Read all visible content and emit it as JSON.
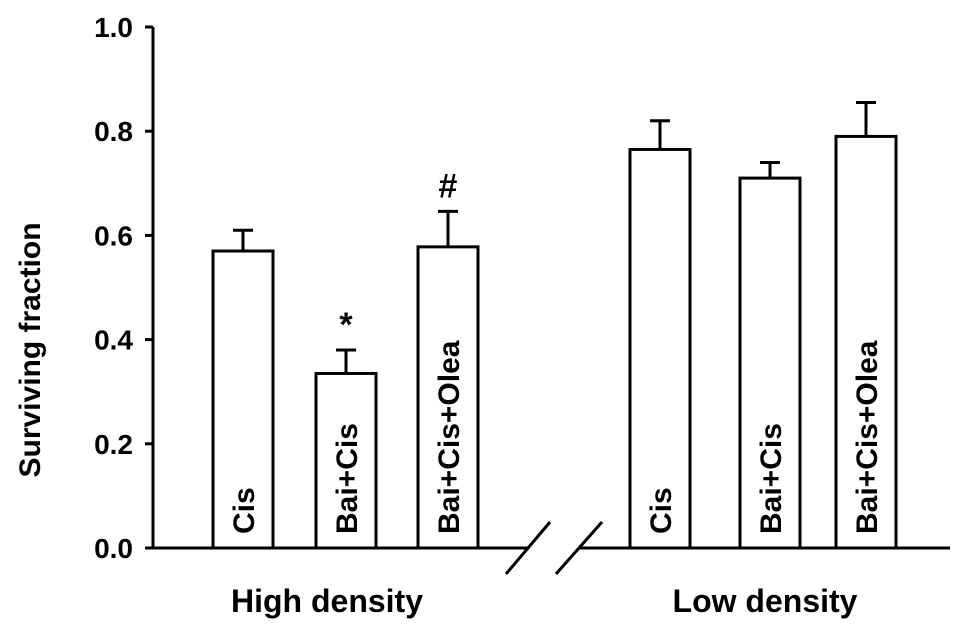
{
  "chart_data": {
    "type": "bar",
    "title": "",
    "ylabel": "Surviving fraction",
    "ylim": [
      0,
      1.0
    ],
    "yticks": [
      "0.0",
      "0.2",
      "0.4",
      "0.6",
      "0.8",
      "1.0"
    ],
    "grid": false,
    "axis_break": true,
    "groups": [
      {
        "name": "High density",
        "bars": [
          {
            "label": "Cis",
            "value": 0.57,
            "error": 0.04,
            "annotation": ""
          },
          {
            "label": "Bai+Cis",
            "value": 0.335,
            "error": 0.045,
            "annotation": "*"
          },
          {
            "label": "Bai+Cis+Olea",
            "value": 0.578,
            "error": 0.068,
            "annotation": "#"
          }
        ]
      },
      {
        "name": "Low density",
        "bars": [
          {
            "label": "Cis",
            "value": 0.765,
            "error": 0.055,
            "annotation": ""
          },
          {
            "label": "Bai+Cis",
            "value": 0.71,
            "error": 0.03,
            "annotation": ""
          },
          {
            "label": "Bai+Cis+Olea",
            "value": 0.79,
            "error": 0.065,
            "annotation": ""
          }
        ]
      }
    ]
  }
}
